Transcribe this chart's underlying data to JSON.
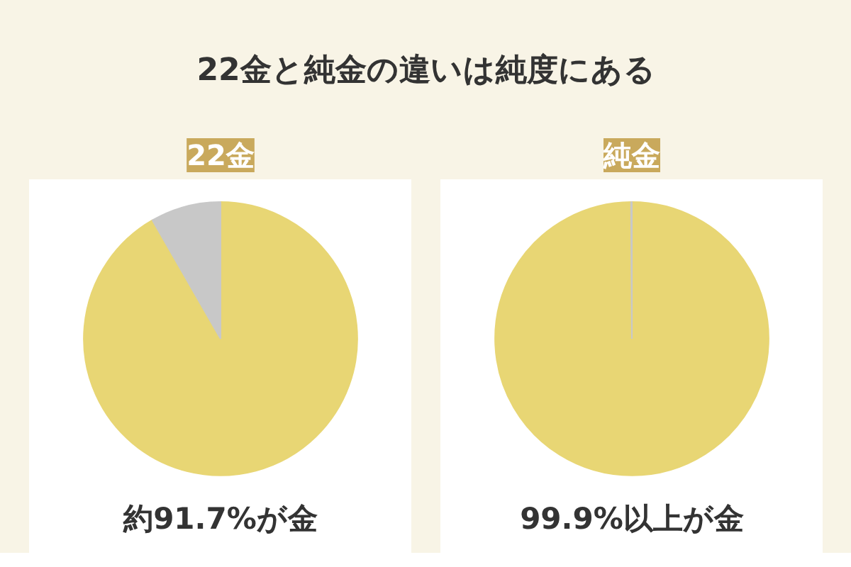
{
  "chart_data": [
    {
      "type": "other",
      "title": "22金と純金の違いは純度にある"
    },
    {
      "type": "pie",
      "title": "22金",
      "categories": [
        null,
        null
      ],
      "values": [
        91.7,
        8.3
      ],
      "colors": [
        "#e8d674",
        "#c8c8c8"
      ],
      "annotations": [
        "約91.7%が金"
      ]
    },
    {
      "type": "pie",
      "title": "純金",
      "categories": [
        null,
        null
      ],
      "values": [
        99.9,
        0.1
      ],
      "colors": [
        "#e8d674",
        "#c8c8c8"
      ],
      "annotations": [
        "99.9%以上が金"
      ]
    }
  ]
}
